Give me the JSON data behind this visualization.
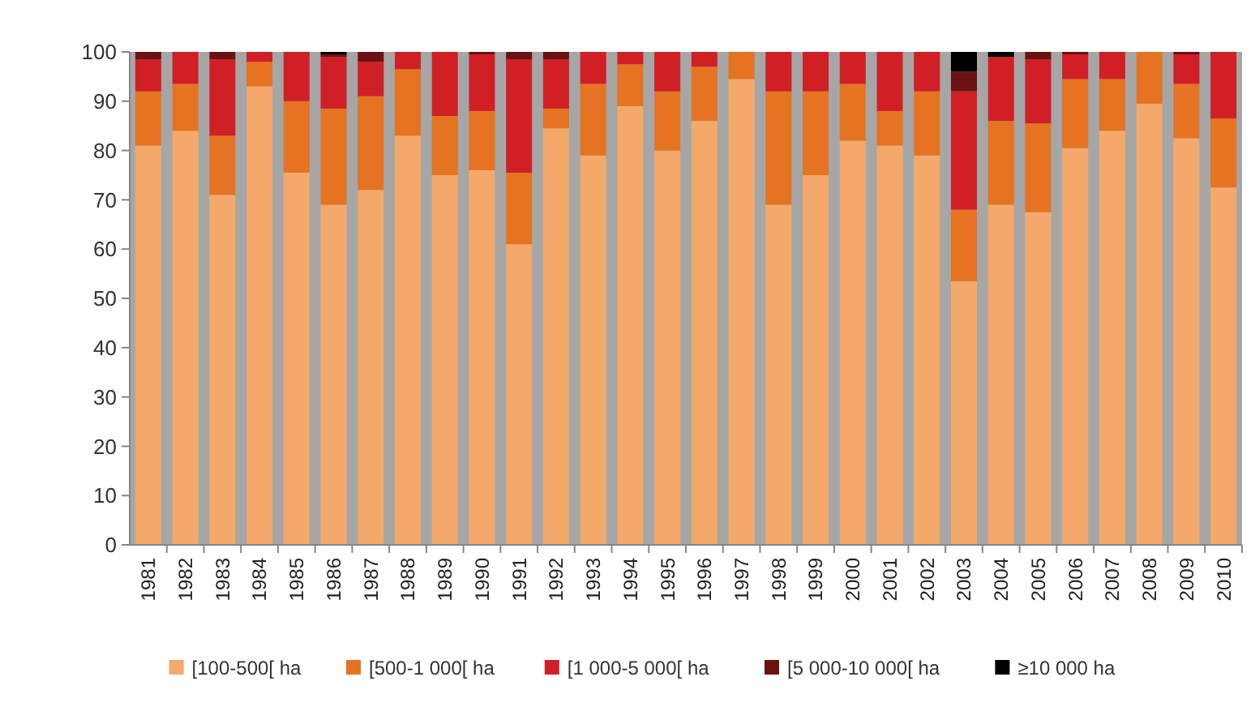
{
  "chart_data": {
    "type": "bar",
    "stacked": true,
    "categories": [
      "1981",
      "1982",
      "1983",
      "1984",
      "1985",
      "1986",
      "1987",
      "1988",
      "1989",
      "1990",
      "1991",
      "1992",
      "1993",
      "1994",
      "1995",
      "1996",
      "1997",
      "1998",
      "1999",
      "2000",
      "2001",
      "2002",
      "2003",
      "2004",
      "2005",
      "2006",
      "2007",
      "2008",
      "2009",
      "2010"
    ],
    "series": [
      {
        "name": "[100-500[ ha",
        "color": "#f4a96a",
        "values": [
          81,
          84,
          71,
          93,
          75.5,
          69,
          72,
          83,
          75,
          76,
          61,
          84.5,
          79,
          89,
          80,
          86,
          94.5,
          69,
          75,
          82,
          81,
          79,
          53.5,
          69,
          67.5,
          80.5,
          84,
          89.5,
          82.5,
          72.5
        ]
      },
      {
        "name": "[500-1 000[ ha",
        "color": "#e57322",
        "values": [
          11,
          9.5,
          12,
          5,
          14.5,
          19.5,
          19,
          13.5,
          12,
          12,
          14.5,
          4,
          14.5,
          8.5,
          12,
          11,
          5.5,
          23,
          17,
          11.5,
          7,
          13,
          14.5,
          17,
          18,
          14,
          10.5,
          10.5,
          11,
          14
        ]
      },
      {
        "name": "[1 000-5 000[ ha",
        "color": "#d11f26",
        "values": [
          6.5,
          6.5,
          15.5,
          2,
          10,
          10.5,
          7,
          3.5,
          13,
          11.5,
          23,
          10,
          6.5,
          2.5,
          8,
          3,
          0,
          8,
          8,
          6.5,
          12,
          8,
          24,
          13,
          13,
          5,
          5.5,
          0,
          6,
          13.5
        ]
      },
      {
        "name": "[5 000-10 000[ ha",
        "color": "#6b1212",
        "values": [
          1.5,
          0,
          1.5,
          0,
          0,
          0.5,
          2,
          0,
          0,
          0.5,
          1.5,
          1.5,
          0,
          0,
          0,
          0,
          0,
          0,
          0,
          0,
          0,
          0,
          4,
          0,
          1.5,
          0.5,
          0,
          0,
          0.5,
          0
        ]
      },
      {
        "name": "≥10 000 ha",
        "color": "#000000",
        "values": [
          0,
          0,
          0,
          0,
          0,
          0.5,
          0,
          0,
          0,
          0,
          0,
          0,
          0,
          0,
          0,
          0,
          0,
          0,
          0,
          0,
          0,
          0,
          4,
          1,
          0,
          0,
          0,
          0,
          0,
          0
        ]
      }
    ],
    "ylim": [
      0,
      100
    ],
    "yticks": [
      0,
      10,
      20,
      30,
      40,
      50,
      60,
      70,
      80,
      90,
      100
    ],
    "grid": false,
    "legend": "bottom"
  }
}
